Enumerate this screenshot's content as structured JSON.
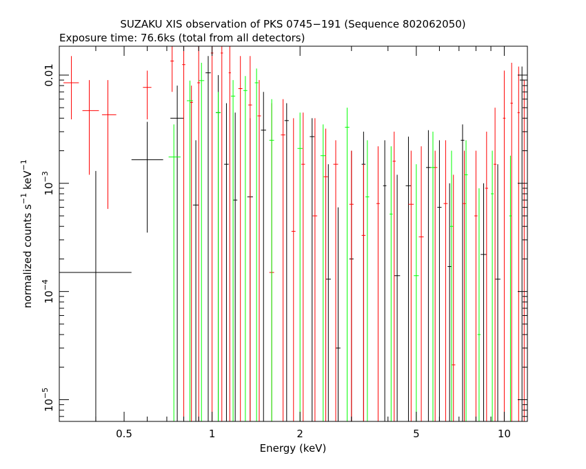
{
  "chart_data": {
    "type": "scatter",
    "title": "SUZAKU XIS observation of PKS 0745−191 (Sequence 802062050)",
    "subtitle": "Exposure time: 76.6ks (total from all detectors)",
    "xlabel": "Energy (keV)",
    "ylabel": {
      "base": "normalized counts s",
      "mid": " keV",
      "sup": "−1"
    },
    "x_scale": "log",
    "y_scale": "log",
    "xlim": [
      0.3,
      12
    ],
    "ylim": [
      6.3e-06,
      0.0185
    ],
    "x_ticks": [
      {
        "value": 0.5,
        "label": "0.5"
      },
      {
        "value": 1,
        "label": "1"
      },
      {
        "value": 2,
        "label": "2"
      },
      {
        "value": 5,
        "label": "5"
      },
      {
        "value": 10,
        "label": "10"
      }
    ],
    "y_ticks": [
      {
        "value": 0.01,
        "label": "0.01",
        "sup": ""
      },
      {
        "value": 0.001,
        "label": "10",
        "sup": "−3"
      },
      {
        "value": 0.0001,
        "label": "10",
        "sup": "−4"
      },
      {
        "value": 1e-05,
        "label": "10",
        "sup": "−5"
      }
    ],
    "grid": false,
    "legend": "none",
    "colors": {
      "black": "#000000",
      "red": "#ff0000",
      "green": "#00ff00"
    },
    "series": [
      {
        "color": "#000000",
        "points": [
          {
            "x": 0.4,
            "xlo": 0.3,
            "xhi": 0.53,
            "y": 0.00015,
            "ylo": 6.3e-06,
            "yhi": 0.0013
          },
          {
            "x": 0.6,
            "xlo": 0.53,
            "xhi": 0.68,
            "y": 0.00165,
            "ylo": 0.00035,
            "yhi": 0.0037
          },
          {
            "x": 0.76,
            "xlo": 0.72,
            "xhi": 0.8,
            "y": 0.004,
            "ylo": 6.3e-06,
            "yhi": 0.008
          },
          {
            "x": 0.88,
            "xlo": 0.86,
            "xhi": 0.9,
            "y": 0.00063,
            "ylo": 6.3e-06,
            "yhi": 0.0025
          },
          {
            "x": 0.97,
            "xlo": 0.95,
            "xhi": 0.99,
            "y": 0.0105,
            "ylo": 6.3e-06,
            "yhi": 0.015
          },
          {
            "x": 1.05,
            "xlo": 1.03,
            "xhi": 1.07,
            "y": 0.0045,
            "ylo": 6.3e-06,
            "yhi": 0.01
          },
          {
            "x": 1.12,
            "xlo": 1.1,
            "xhi": 1.14,
            "y": 0.0015,
            "ylo": 6.3e-06,
            "yhi": 0.0055
          },
          {
            "x": 1.2,
            "xlo": 1.18,
            "xhi": 1.22,
            "y": 0.0007,
            "ylo": 6.3e-06,
            "yhi": 0.0045
          },
          {
            "x": 1.35,
            "xlo": 1.32,
            "xhi": 1.38,
            "y": 0.00075,
            "ylo": 6.3e-06,
            "yhi": 0.004
          },
          {
            "x": 1.5,
            "xlo": 1.47,
            "xhi": 1.53,
            "y": 0.0031,
            "ylo": 6.3e-06,
            "yhi": 0.007
          },
          {
            "x": 1.8,
            "xlo": 1.77,
            "xhi": 1.83,
            "y": 0.0038,
            "ylo": 6.3e-06,
            "yhi": 0.0055
          },
          {
            "x": 2.2,
            "xlo": 2.16,
            "xhi": 2.24,
            "y": 0.0027,
            "ylo": 6.3e-06,
            "yhi": 0.004
          },
          {
            "x": 2.5,
            "xlo": 2.45,
            "xhi": 2.55,
            "y": 0.00013,
            "ylo": 6.3e-06,
            "yhi": 0.0015
          },
          {
            "x": 2.7,
            "xlo": 2.65,
            "xhi": 2.75,
            "y": 3e-05,
            "ylo": 6.3e-06,
            "yhi": 0.0006
          },
          {
            "x": 3.0,
            "xlo": 2.95,
            "xhi": 3.05,
            "y": 0.0002,
            "ylo": 6.3e-06,
            "yhi": 0.002
          },
          {
            "x": 3.3,
            "xlo": 3.25,
            "xhi": 3.35,
            "y": 0.0015,
            "ylo": 6.3e-06,
            "yhi": 0.003
          },
          {
            "x": 3.9,
            "xlo": 3.85,
            "xhi": 3.95,
            "y": 0.00095,
            "ylo": 6.3e-06,
            "yhi": 0.0025
          },
          {
            "x": 4.3,
            "xlo": 4.2,
            "xhi": 4.4,
            "y": 0.00014,
            "ylo": 6.3e-06,
            "yhi": 0.0012
          },
          {
            "x": 4.7,
            "xlo": 4.6,
            "xhi": 4.8,
            "y": 0.00095,
            "ylo": 6.3e-06,
            "yhi": 0.0027
          },
          {
            "x": 5.5,
            "xlo": 5.4,
            "xhi": 5.6,
            "y": 0.0014,
            "ylo": 6.3e-06,
            "yhi": 0.0031
          },
          {
            "x": 6.0,
            "xlo": 5.9,
            "xhi": 6.1,
            "y": 0.0006,
            "ylo": 6.3e-06,
            "yhi": 0.0025
          },
          {
            "x": 6.5,
            "xlo": 6.4,
            "xhi": 6.6,
            "y": 0.00017,
            "ylo": 6.3e-06,
            "yhi": 0.001
          },
          {
            "x": 7.2,
            "xlo": 7.1,
            "xhi": 7.3,
            "y": 0.0025,
            "ylo": 6.3e-06,
            "yhi": 0.0035
          },
          {
            "x": 8.5,
            "xlo": 8.3,
            "xhi": 8.7,
            "y": 0.00022,
            "ylo": 6.3e-06,
            "yhi": 0.001
          },
          {
            "x": 9.5,
            "xlo": 9.3,
            "xhi": 9.7,
            "y": 0.00013,
            "ylo": 6.3e-06,
            "yhi": 0.0015
          },
          {
            "x": 11.5,
            "xlo": 11.3,
            "xhi": 11.7,
            "y": 0.009,
            "ylo": 6.3e-06,
            "yhi": 0.012
          }
        ]
      },
      {
        "color": "#ff0000",
        "points": [
          {
            "x": 0.33,
            "xlo": 0.31,
            "xhi": 0.35,
            "y": 0.0085,
            "ylo": 0.0039,
            "yhi": 0.015
          },
          {
            "x": 0.38,
            "xlo": 0.36,
            "xhi": 0.41,
            "y": 0.0047,
            "ylo": 0.0012,
            "yhi": 0.009
          },
          {
            "x": 0.44,
            "xlo": 0.42,
            "xhi": 0.47,
            "y": 0.0043,
            "ylo": 0.00058,
            "yhi": 0.009
          },
          {
            "x": 0.6,
            "xlo": 0.58,
            "xhi": 0.62,
            "y": 0.0077,
            "ylo": 0.0039,
            "yhi": 0.011
          },
          {
            "x": 0.73,
            "xlo": 0.72,
            "xhi": 0.74,
            "y": 0.0135,
            "ylo": 0.007,
            "yhi": 0.0185
          },
          {
            "x": 0.8,
            "xlo": 0.79,
            "xhi": 0.81,
            "y": 0.0125,
            "ylo": 6.3e-06,
            "yhi": 0.0185
          },
          {
            "x": 0.85,
            "xlo": 0.84,
            "xhi": 0.86,
            "y": 0.0056,
            "ylo": 6.3e-06,
            "yhi": 0.008
          },
          {
            "x": 0.9,
            "xlo": 0.89,
            "xhi": 0.91,
            "y": 0.0085,
            "ylo": 6.3e-06,
            "yhi": 0.0185
          },
          {
            "x": 1.0,
            "xlo": 0.99,
            "xhi": 1.01,
            "y": 0.016,
            "ylo": 6.3e-06,
            "yhi": 0.0185
          },
          {
            "x": 1.08,
            "xlo": 1.07,
            "xhi": 1.09,
            "y": 0.016,
            "ylo": 6.3e-06,
            "yhi": 0.0185
          },
          {
            "x": 1.15,
            "xlo": 1.14,
            "xhi": 1.16,
            "y": 0.0105,
            "ylo": 6.3e-06,
            "yhi": 0.0185
          },
          {
            "x": 1.25,
            "xlo": 1.23,
            "xhi": 1.27,
            "y": 0.0075,
            "ylo": 6.3e-06,
            "yhi": 0.015
          },
          {
            "x": 1.35,
            "xlo": 1.33,
            "xhi": 1.37,
            "y": 0.0053,
            "ylo": 6.3e-06,
            "yhi": 0.015
          },
          {
            "x": 1.45,
            "xlo": 1.43,
            "xhi": 1.47,
            "y": 0.0042,
            "ylo": 6.3e-06,
            "yhi": 0.009
          },
          {
            "x": 1.6,
            "xlo": 1.57,
            "xhi": 1.63,
            "y": 0.00015,
            "ylo": 6.3e-06,
            "yhi": 0.0055
          },
          {
            "x": 1.75,
            "xlo": 1.72,
            "xhi": 1.78,
            "y": 0.0028,
            "ylo": 6.3e-06,
            "yhi": 0.006
          },
          {
            "x": 1.9,
            "xlo": 1.87,
            "xhi": 1.93,
            "y": 0.00036,
            "ylo": 6.3e-06,
            "yhi": 0.004
          },
          {
            "x": 2.05,
            "xlo": 2.02,
            "xhi": 2.08,
            "y": 0.0015,
            "ylo": 6.3e-06,
            "yhi": 0.0045
          },
          {
            "x": 2.25,
            "xlo": 2.21,
            "xhi": 2.29,
            "y": 0.0005,
            "ylo": 6.3e-06,
            "yhi": 0.004
          },
          {
            "x": 2.45,
            "xlo": 2.41,
            "xhi": 2.49,
            "y": 0.00115,
            "ylo": 6.3e-06,
            "yhi": 0.0032
          },
          {
            "x": 2.65,
            "xlo": 2.6,
            "xhi": 2.7,
            "y": 0.0015,
            "ylo": 6.3e-06,
            "yhi": 0.0025
          },
          {
            "x": 3.0,
            "xlo": 2.95,
            "xhi": 3.05,
            "y": 0.00064,
            "ylo": 6.3e-06,
            "yhi": 0.002
          },
          {
            "x": 3.3,
            "xlo": 3.25,
            "xhi": 3.35,
            "y": 0.00033,
            "ylo": 6.3e-06,
            "yhi": 0.0015
          },
          {
            "x": 3.7,
            "xlo": 3.65,
            "xhi": 3.75,
            "y": 0.00065,
            "ylo": 6.3e-06,
            "yhi": 0.0022
          },
          {
            "x": 4.2,
            "xlo": 4.15,
            "xhi": 4.25,
            "y": 0.0016,
            "ylo": 6.3e-06,
            "yhi": 0.003
          },
          {
            "x": 4.8,
            "xlo": 4.7,
            "xhi": 4.9,
            "y": 0.00064,
            "ylo": 6.3e-06,
            "yhi": 0.002
          },
          {
            "x": 5.2,
            "xlo": 5.1,
            "xhi": 5.3,
            "y": 0.00032,
            "ylo": 6.3e-06,
            "yhi": 0.0022
          },
          {
            "x": 5.8,
            "xlo": 5.7,
            "xhi": 5.9,
            "y": 0.0014,
            "ylo": 6.3e-06,
            "yhi": 0.002
          },
          {
            "x": 6.3,
            "xlo": 6.2,
            "xhi": 6.4,
            "y": 0.00065,
            "ylo": 6.3e-06,
            "yhi": 0.0025
          },
          {
            "x": 6.7,
            "xlo": 6.6,
            "xhi": 6.8,
            "y": 2.1e-05,
            "ylo": 6.3e-06,
            "yhi": 0.0012
          },
          {
            "x": 7.3,
            "xlo": 7.2,
            "xhi": 7.4,
            "y": 0.00065,
            "ylo": 6.3e-06,
            "yhi": 0.002
          },
          {
            "x": 8.0,
            "xlo": 7.9,
            "xhi": 8.1,
            "y": 0.0005,
            "ylo": 6.3e-06,
            "yhi": 0.002
          },
          {
            "x": 8.7,
            "xlo": 8.6,
            "xhi": 8.8,
            "y": 0.0009,
            "ylo": 6.3e-06,
            "yhi": 0.003
          },
          {
            "x": 9.3,
            "xlo": 9.2,
            "xhi": 9.4,
            "y": 0.0015,
            "ylo": 6.3e-06,
            "yhi": 0.005
          },
          {
            "x": 10.0,
            "xlo": 9.9,
            "xhi": 10.1,
            "y": 0.004,
            "ylo": 6.3e-06,
            "yhi": 0.011
          },
          {
            "x": 10.6,
            "xlo": 10.5,
            "xhi": 10.7,
            "y": 0.0055,
            "ylo": 6.3e-06,
            "yhi": 0.013
          },
          {
            "x": 11.2,
            "xlo": 11.1,
            "xhi": 11.3,
            "y": 0.0045,
            "ylo": 6.3e-06,
            "yhi": 0.012
          },
          {
            "x": 11.7,
            "xlo": 11.6,
            "xhi": 11.8,
            "y": 0.003,
            "ylo": 6.3e-06,
            "yhi": 0.009
          }
        ]
      },
      {
        "color": "#00ff00",
        "points": [
          {
            "x": 0.74,
            "xlo": 0.71,
            "xhi": 0.78,
            "y": 0.00175,
            "ylo": 6.3e-06,
            "yhi": 0.0035
          },
          {
            "x": 0.84,
            "xlo": 0.82,
            "xhi": 0.86,
            "y": 0.0058,
            "ylo": 6.3e-06,
            "yhi": 0.0089
          },
          {
            "x": 0.92,
            "xlo": 0.9,
            "xhi": 0.94,
            "y": 0.0089,
            "ylo": 6.3e-06,
            "yhi": 0.013
          },
          {
            "x": 1.05,
            "xlo": 1.03,
            "xhi": 1.07,
            "y": 0.0045,
            "ylo": 6.3e-06,
            "yhi": 0.007
          },
          {
            "x": 1.18,
            "xlo": 1.16,
            "xhi": 1.2,
            "y": 0.0064,
            "ylo": 6.3e-06,
            "yhi": 0.009
          },
          {
            "x": 1.3,
            "xlo": 1.28,
            "xhi": 1.32,
            "y": 0.0072,
            "ylo": 6.3e-06,
            "yhi": 0.0098
          },
          {
            "x": 1.42,
            "xlo": 1.4,
            "xhi": 1.44,
            "y": 0.0085,
            "ylo": 6.3e-06,
            "yhi": 0.0115
          },
          {
            "x": 1.6,
            "xlo": 1.57,
            "xhi": 1.63,
            "y": 0.0025,
            "ylo": 6.3e-06,
            "yhi": 0.006
          },
          {
            "x": 2.0,
            "xlo": 1.96,
            "xhi": 2.04,
            "y": 0.0021,
            "ylo": 6.3e-06,
            "yhi": 0.0045
          },
          {
            "x": 2.4,
            "xlo": 2.35,
            "xhi": 2.45,
            "y": 0.0018,
            "ylo": 6.3e-06,
            "yhi": 0.0035
          },
          {
            "x": 2.9,
            "xlo": 2.85,
            "xhi": 2.95,
            "y": 0.0033,
            "ylo": 6.3e-06,
            "yhi": 0.005
          },
          {
            "x": 3.4,
            "xlo": 3.35,
            "xhi": 3.45,
            "y": 0.00075,
            "ylo": 6.3e-06,
            "yhi": 0.0025
          },
          {
            "x": 4.1,
            "xlo": 4.05,
            "xhi": 4.15,
            "y": 0.00052,
            "ylo": 6.3e-06,
            "yhi": 0.0022
          },
          {
            "x": 5.0,
            "xlo": 4.9,
            "xhi": 5.1,
            "y": 0.00014,
            "ylo": 6.3e-06,
            "yhi": 0.0015
          },
          {
            "x": 5.7,
            "xlo": 5.6,
            "xhi": 5.8,
            "y": 0.0014,
            "ylo": 6.3e-06,
            "yhi": 0.003
          },
          {
            "x": 6.6,
            "xlo": 6.5,
            "xhi": 6.7,
            "y": 0.0004,
            "ylo": 6.3e-06,
            "yhi": 0.002
          },
          {
            "x": 7.4,
            "xlo": 7.3,
            "xhi": 7.5,
            "y": 0.0012,
            "ylo": 6.3e-06,
            "yhi": 0.0025
          },
          {
            "x": 8.2,
            "xlo": 8.1,
            "xhi": 8.3,
            "y": 4e-05,
            "ylo": 6.3e-06,
            "yhi": 0.0009
          },
          {
            "x": 9.1,
            "xlo": 9.0,
            "xhi": 9.2,
            "y": 0.0008,
            "ylo": 6.3e-06,
            "yhi": 0.002
          },
          {
            "x": 10.5,
            "xlo": 10.4,
            "xhi": 10.6,
            "y": 0.0005,
            "ylo": 6.3e-06,
            "yhi": 0.0018
          }
        ]
      }
    ]
  }
}
